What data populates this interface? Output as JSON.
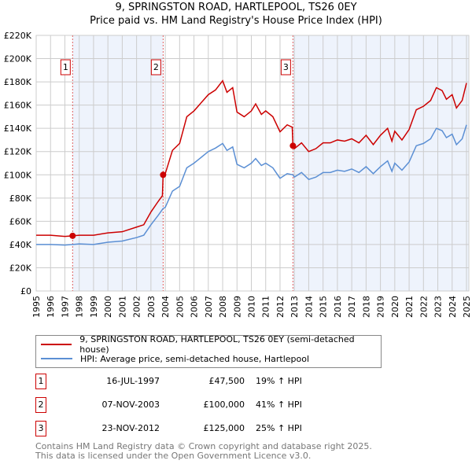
{
  "chart_data": {
    "type": "line",
    "title": "9, SPRINGSTON ROAD, HARTLEPOOL, TS26 0EY",
    "subtitle": "Price paid vs. HM Land Registry's House Price Index (HPI)",
    "xlim": [
      1995,
      2025.2
    ],
    "ylim": [
      0,
      220000
    ],
    "x_ticks": [
      "1995",
      "1996",
      "1997",
      "1998",
      "1999",
      "2000",
      "2001",
      "2002",
      "2003",
      "2004",
      "2005",
      "2006",
      "2007",
      "2008",
      "2009",
      "2010",
      "2011",
      "2012",
      "2013",
      "2014",
      "2015",
      "2016",
      "2017",
      "2018",
      "2019",
      "2020",
      "2021",
      "2022",
      "2023",
      "2024",
      "2025"
    ],
    "y_ticks": [
      {
        "v": 0,
        "label": "£0"
      },
      {
        "v": 20000,
        "label": "£20K"
      },
      {
        "v": 40000,
        "label": "£40K"
      },
      {
        "v": 60000,
        "label": "£60K"
      },
      {
        "v": 80000,
        "label": "£80K"
      },
      {
        "v": 100000,
        "label": "£100K"
      },
      {
        "v": 120000,
        "label": "£120K"
      },
      {
        "v": 140000,
        "label": "£140K"
      },
      {
        "v": 160000,
        "label": "£160K"
      },
      {
        "v": 180000,
        "label": "£180K"
      },
      {
        "v": 200000,
        "label": "£200K"
      },
      {
        "v": 220000,
        "label": "£220K"
      }
    ],
    "grid": true,
    "series": [
      {
        "name": "9, SPRINGSTON ROAD, HARTLEPOOL, TS26 0EY (semi-detached house)",
        "color": "#cc0000",
        "x": [
          1995,
          1996,
          1997,
          1997.54,
          1998,
          1999,
          2000,
          2001,
          2002,
          2002.5,
          2003,
          2003.5,
          2003.8,
          2003.85,
          2004,
          2004.5,
          2005,
          2005.5,
          2006,
          2006.5,
          2007,
          2007.5,
          2008,
          2008.3,
          2008.7,
          2009,
          2009.5,
          2010,
          2010.3,
          2010.7,
          2011,
          2011.5,
          2012,
          2012.5,
          2012.85,
          2012.9,
          2013,
          2013.5,
          2014,
          2014.5,
          2015,
          2015.5,
          2016,
          2016.5,
          2017,
          2017.5,
          2018,
          2018.5,
          2019,
          2019.5,
          2019.8,
          2020,
          2020.5,
          2021,
          2021.5,
          2022,
          2022.5,
          2022.9,
          2023.3,
          2023.6,
          2024,
          2024.3,
          2024.7,
          2025
        ],
        "y": [
          48000,
          48000,
          47000,
          47500,
          48000,
          48000,
          50000,
          51000,
          55000,
          57000,
          68000,
          77000,
          82000,
          100000,
          101000,
          121000,
          127000,
          150000,
          155000,
          162000,
          169000,
          173000,
          181000,
          171000,
          175000,
          154000,
          150000,
          155000,
          161000,
          152000,
          155000,
          150000,
          137000,
          143000,
          141000,
          125000,
          122500,
          127500,
          120000,
          122500,
          127500,
          127500,
          130000,
          129000,
          131000,
          127500,
          134000,
          126000,
          134000,
          140000,
          129000,
          137500,
          130000,
          139000,
          156000,
          159000,
          164000,
          175000,
          172500,
          165000,
          169000,
          157500,
          164000,
          179000
        ]
      },
      {
        "name": "HPI: Average price, semi-detached house, Hartlepool",
        "color": "#5b8fd4",
        "x": [
          1995,
          1996,
          1997,
          1997.54,
          1998,
          1999,
          2000,
          2001,
          2002,
          2002.5,
          2003,
          2003.5,
          2003.85,
          2004,
          2004.5,
          2005,
          2005.5,
          2006,
          2006.5,
          2007,
          2007.5,
          2008,
          2008.3,
          2008.7,
          2009,
          2009.5,
          2010,
          2010.3,
          2010.7,
          2011,
          2011.5,
          2012,
          2012.5,
          2012.9,
          2013,
          2013.5,
          2014,
          2014.5,
          2015,
          2015.5,
          2016,
          2016.5,
          2017,
          2017.5,
          2018,
          2018.5,
          2019,
          2019.5,
          2019.8,
          2020,
          2020.5,
          2021,
          2021.5,
          2022,
          2022.5,
          2022.9,
          2023.3,
          2023.6,
          2024,
          2024.3,
          2024.7,
          2025
        ],
        "y": [
          40000,
          40000,
          39500,
          40000,
          40500,
          40000,
          42000,
          43000,
          46000,
          48000,
          57000,
          65000,
          71000,
          72000,
          86000,
          90000,
          106000,
          110000,
          115000,
          120000,
          123000,
          127000,
          121000,
          124000,
          109000,
          106000,
          110000,
          114000,
          108000,
          110000,
          106000,
          97000,
          101000,
          100000,
          98000,
          102000,
          96000,
          98000,
          102000,
          102000,
          104000,
          103000,
          105000,
          102000,
          107000,
          101000,
          107000,
          112000,
          103000,
          110000,
          104000,
          111000,
          125000,
          127000,
          131000,
          140000,
          138000,
          132000,
          135000,
          126000,
          131000,
          143000
        ]
      }
    ],
    "sales": [
      {
        "num": "1",
        "x": 1997.54,
        "y": 47500,
        "date": "16-JUL-1997",
        "price": "£47,500",
        "hpi": "19% ↑ HPI"
      },
      {
        "num": "2",
        "x": 2003.85,
        "y": 100000,
        "date": "07-NOV-2003",
        "price": "£100,000",
        "hpi": "41% ↑ HPI"
      },
      {
        "num": "3",
        "x": 2012.9,
        "y": 125000,
        "date": "23-NOV-2012",
        "price": "£125,000",
        "hpi": "25% ↑ HPI"
      }
    ],
    "legend_position": "below"
  },
  "footer": {
    "line1": "Contains HM Land Registry data © Crown copyright and database right 2025.",
    "line2": "This data is licensed under the Open Government Licence v3.0."
  }
}
